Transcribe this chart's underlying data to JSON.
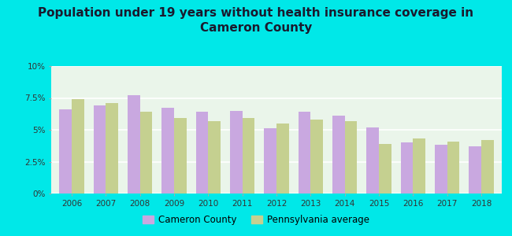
{
  "title_line1": "Population under 19 years without health insurance coverage in",
  "title_line2": "Cameron County",
  "years": [
    2006,
    2007,
    2008,
    2009,
    2010,
    2011,
    2012,
    2013,
    2014,
    2015,
    2016,
    2017,
    2018
  ],
  "cameron": [
    6.6,
    6.9,
    7.7,
    6.7,
    6.4,
    6.5,
    5.1,
    6.4,
    6.1,
    5.2,
    4.0,
    3.8,
    3.7
  ],
  "pa_avg": [
    7.4,
    7.1,
    6.4,
    5.9,
    5.7,
    5.9,
    5.5,
    5.8,
    5.7,
    3.9,
    4.3,
    4.1,
    4.2
  ],
  "cameron_color": "#c9a8e0",
  "pa_color": "#c5d090",
  "bg_outer": "#00e8e8",
  "bg_chart_top": "#e8f5e8",
  "bg_chart_bottom": "#f5fff5",
  "ylim": [
    0,
    10
  ],
  "yticks": [
    0,
    2.5,
    5.0,
    7.5,
    10.0
  ],
  "ytick_labels": [
    "0%",
    "2.5%",
    "5%",
    "7.5%",
    "10%"
  ],
  "title_fontsize": 11,
  "bar_width": 0.36,
  "legend_cameron": "Cameron County",
  "legend_pa": "Pennsylvania average",
  "title_color": "#1a1a2e",
  "tick_color": "#333333"
}
